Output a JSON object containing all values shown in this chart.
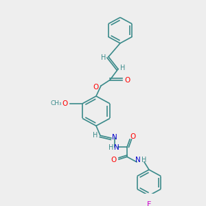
{
  "bg_color": "#eeeeee",
  "bond_color": "#3a8a8a",
  "atom_colors": {
    "O": "#ff0000",
    "N": "#0000cc",
    "F": "#cc00cc",
    "H": "#3a8a8a",
    "C": "#3a8a8a"
  },
  "figsize": [
    3.0,
    3.0
  ],
  "dpi": 100
}
